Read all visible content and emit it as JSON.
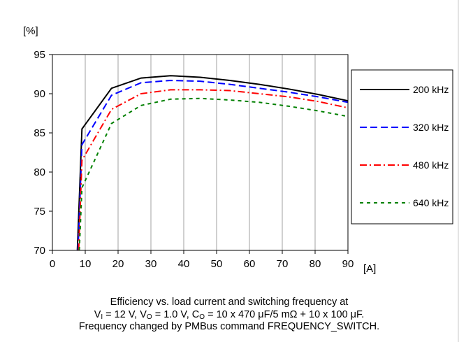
{
  "chart_data": {
    "type": "line",
    "y_unit": "[%]",
    "x_unit": "[A]",
    "xlim": [
      0,
      90
    ],
    "ylim": [
      70,
      95
    ],
    "x_ticks": [
      0,
      10,
      20,
      30,
      40,
      50,
      60,
      70,
      80,
      90
    ],
    "y_ticks": [
      70,
      75,
      80,
      85,
      90,
      95
    ],
    "grid": "vertical",
    "legend_position": "right",
    "series": [
      {
        "name": "200 kHz",
        "color": "#000000",
        "dash": "solid",
        "x": [
          7.6,
          9.0,
          18,
          27,
          36,
          45,
          54,
          63,
          72,
          81,
          90
        ],
        "y": [
          70.0,
          85.5,
          90.7,
          92.0,
          92.3,
          92.1,
          91.7,
          91.2,
          90.6,
          89.9,
          89.1
        ]
      },
      {
        "name": "320 kHz",
        "color": "#0000ff",
        "dash": "dashed",
        "x": [
          7.8,
          9.0,
          18,
          27,
          36,
          45,
          54,
          63,
          72,
          81,
          90
        ],
        "y": [
          70.0,
          83.5,
          89.8,
          91.4,
          91.7,
          91.6,
          91.2,
          90.7,
          90.2,
          89.6,
          88.9
        ]
      },
      {
        "name": "480 kHz",
        "color": "#ff0000",
        "dash": "dashdot",
        "x": [
          8.0,
          9.0,
          18,
          27,
          36,
          45,
          54,
          63,
          72,
          81,
          90
        ],
        "y": [
          70.0,
          81.5,
          88.0,
          90.0,
          90.5,
          90.5,
          90.4,
          90.0,
          89.6,
          89.0,
          88.2
        ]
      },
      {
        "name": "640 kHz",
        "color": "#008000",
        "dash": "dotted",
        "x": [
          8.2,
          9.0,
          18,
          27,
          36,
          45,
          54,
          63,
          72,
          81,
          90
        ],
        "y": [
          70.0,
          78.0,
          86.2,
          88.5,
          89.3,
          89.4,
          89.2,
          88.9,
          88.4,
          87.8,
          87.1
        ]
      }
    ]
  },
  "caption": {
    "line1": "Efficiency vs. load current and switching frequency at",
    "l2_a": "V",
    "l2_b": "I",
    "l2_c": " = 12 V, V",
    "l2_d": "O",
    "l2_e": " = 1.0 V, C",
    "l2_f": "O",
    "l2_g": " = 10 x 470 μF/5 mΩ + 10 x 100 μF.",
    "line3": "Frequency changed by PMBus command FREQUENCY_SWITCH."
  }
}
